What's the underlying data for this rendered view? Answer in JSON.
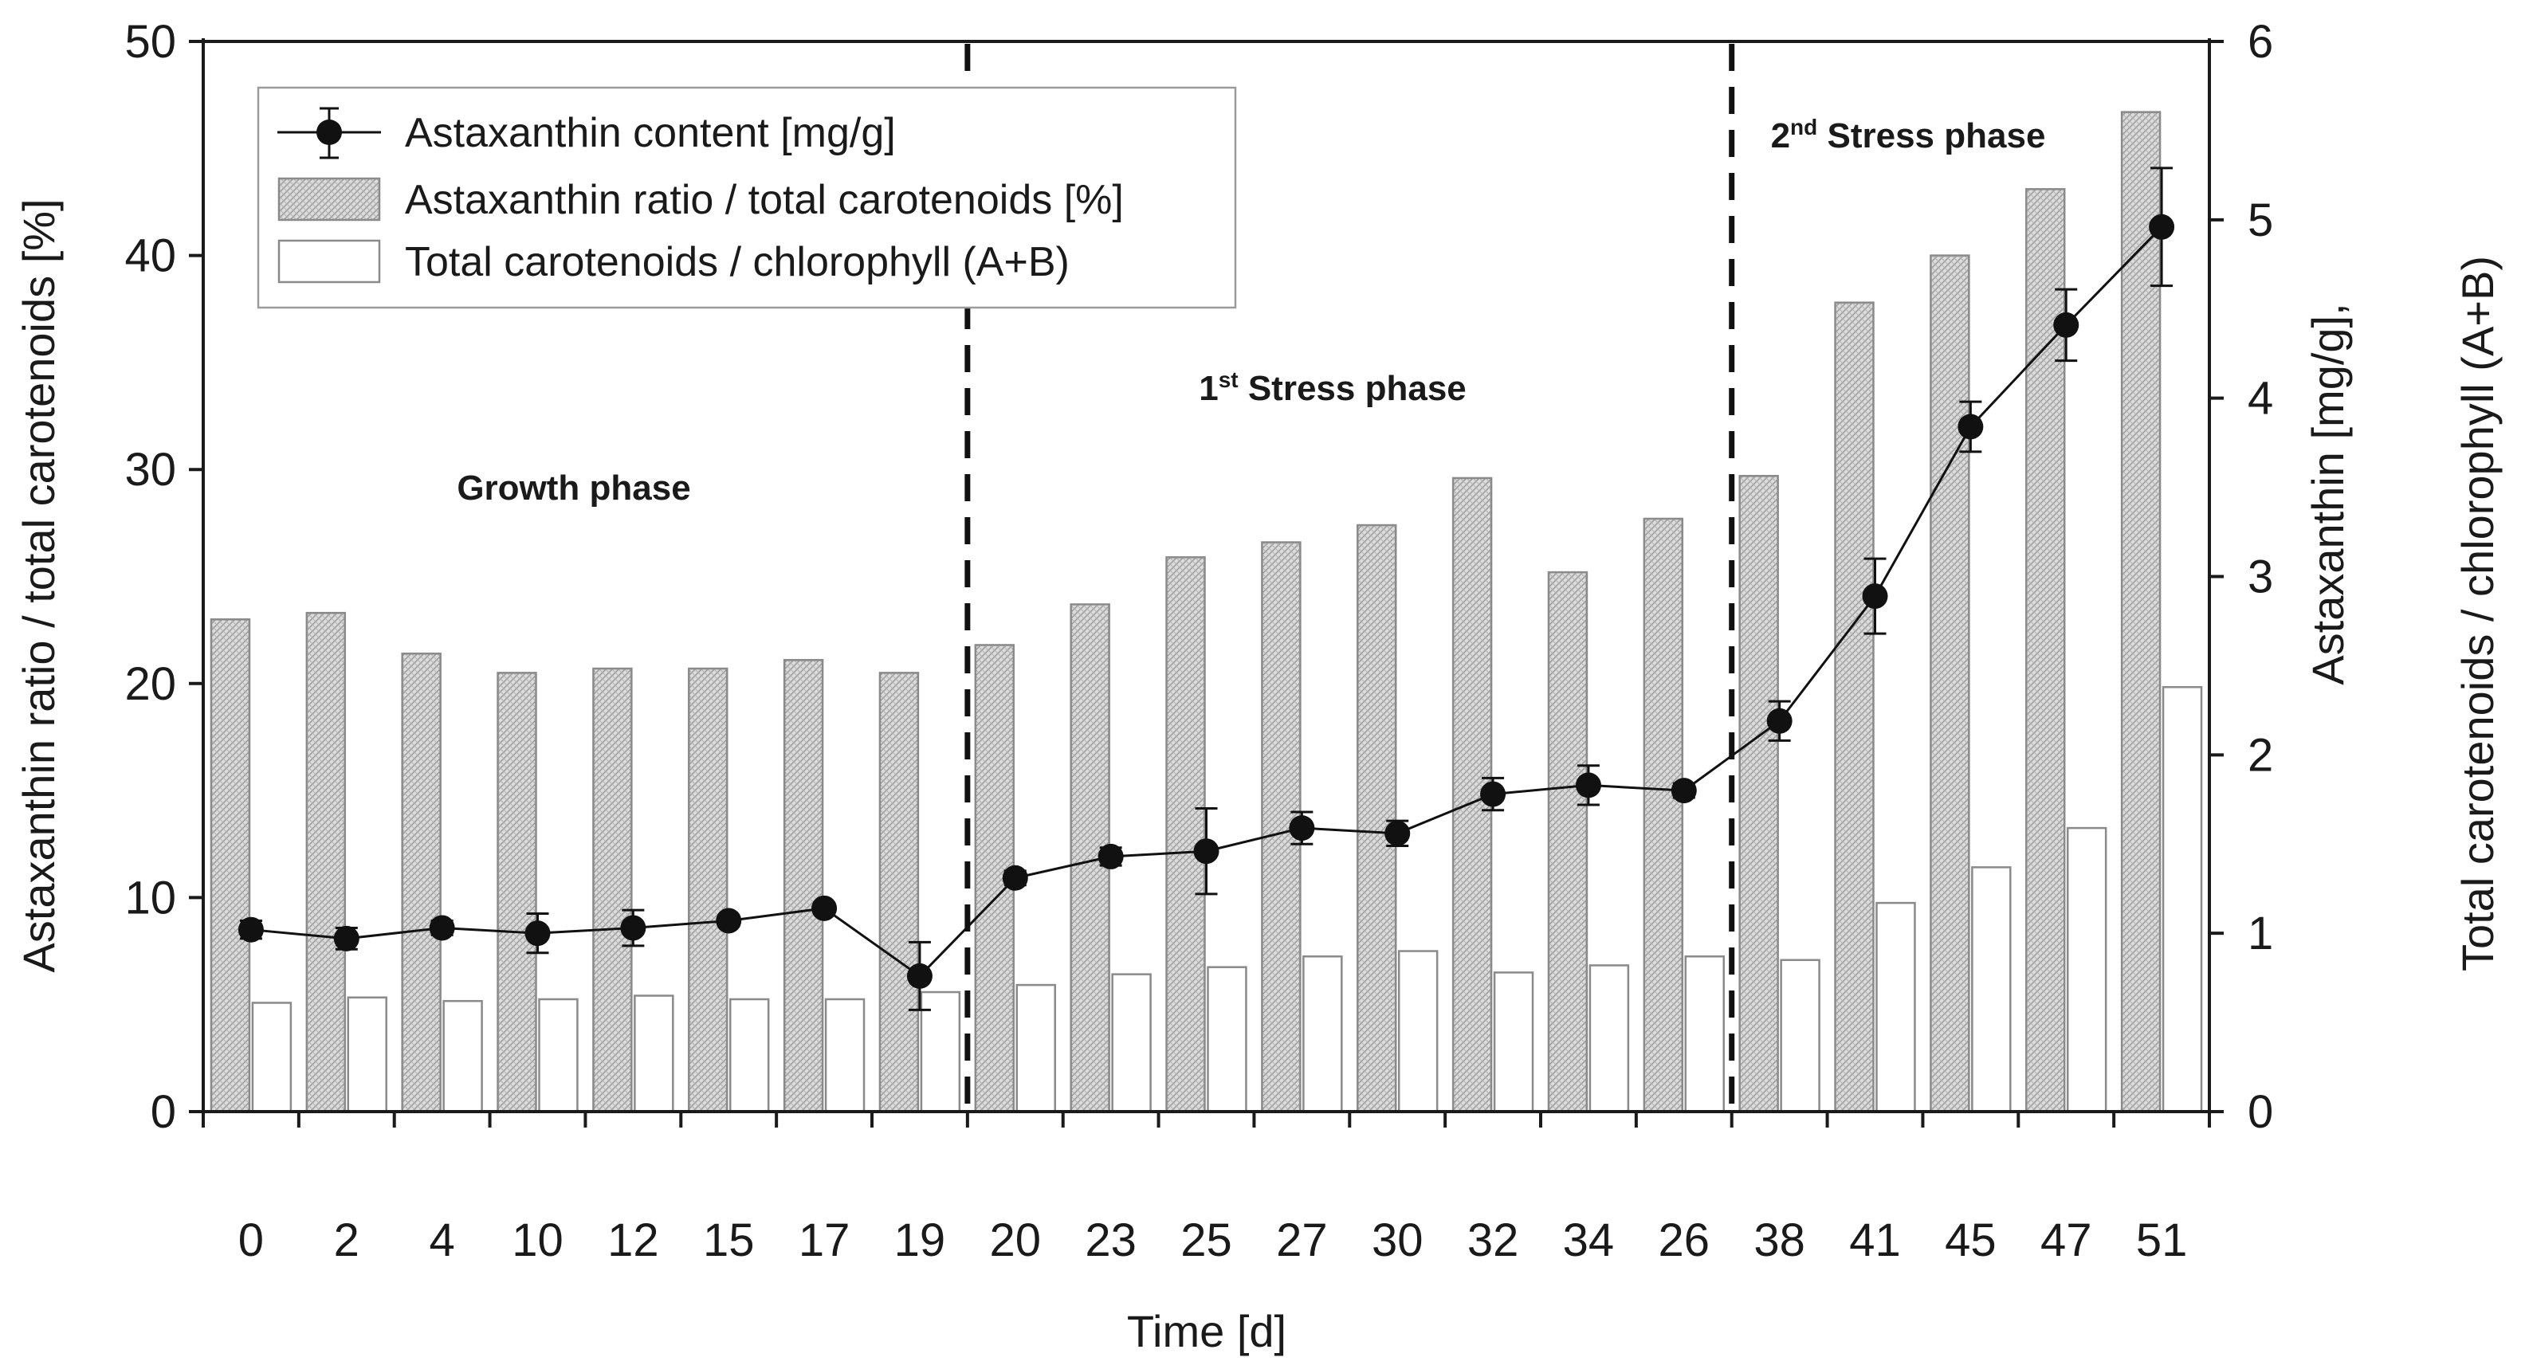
{
  "chart_data": {
    "type": "bar",
    "categories": [
      "0",
      "2",
      "4",
      "10",
      "12",
      "15",
      "17",
      "19",
      "20",
      "23",
      "25",
      "27",
      "30",
      "32",
      "34",
      "26",
      "38",
      "41",
      "45",
      "47",
      "51"
    ],
    "xlabel": "Time [d]",
    "ylabel_left": "Astaxanthin ratio / total carotenoids [%]",
    "ylabel_right_lines": [
      "Total carotenoids / chlorophyll (A+B)",
      "Astaxanthin [mg/g],"
    ],
    "ylim_left": [
      0,
      50
    ],
    "ylim_right": [
      0,
      6
    ],
    "yticks_left": [
      "0",
      "10",
      "20",
      "30",
      "40",
      "50"
    ],
    "yticks_right": [
      "0",
      "1",
      "2",
      "3",
      "4",
      "5",
      "6"
    ],
    "series": [
      {
        "name": "Astaxanthin ratio / total carotenoids [%]",
        "type": "bar",
        "axis": "left",
        "pattern": "hatched",
        "values": [
          23.0,
          23.3,
          21.4,
          20.5,
          20.7,
          20.7,
          21.1,
          20.5,
          21.8,
          23.7,
          25.9,
          26.6,
          27.4,
          29.6,
          25.2,
          27.7,
          29.7,
          37.8,
          40.0,
          43.1,
          46.7
        ]
      },
      {
        "name": "Total carotenoids / chlorophyll (A+B)",
        "type": "bar",
        "axis": "right",
        "pattern": "open",
        "values": [
          0.61,
          0.64,
          0.62,
          0.63,
          0.65,
          0.63,
          0.63,
          0.67,
          0.71,
          0.77,
          0.81,
          0.87,
          0.9,
          0.78,
          0.82,
          0.87,
          0.85,
          1.17,
          1.37,
          1.59,
          2.38
        ]
      },
      {
        "name": "Astaxanthin content [mg/g]",
        "type": "line",
        "axis": "right",
        "marker": "circle",
        "values": [
          1.02,
          0.97,
          1.03,
          1.0,
          1.03,
          1.07,
          1.14,
          0.76,
          1.31,
          1.43,
          1.46,
          1.59,
          1.56,
          1.78,
          1.83,
          1.8,
          2.19,
          2.89,
          3.84,
          4.41,
          4.96
        ],
        "errors": [
          0.05,
          0.06,
          0.04,
          0.11,
          0.1,
          0.03,
          0.03,
          0.19,
          0.04,
          0.05,
          0.24,
          0.09,
          0.07,
          0.09,
          0.11,
          0.04,
          0.11,
          0.21,
          0.14,
          0.2,
          0.33
        ]
      }
    ],
    "phase_dividers_after_index": [
      7,
      15
    ],
    "phases": [
      {
        "label": "Growth phase",
        "sup": "",
        "rest": ""
      },
      {
        "label": "1",
        "sup": "st",
        "rest": " Stress phase"
      },
      {
        "label": "2",
        "sup": "nd",
        "rest": " Stress phase"
      }
    ],
    "legend_position": "top-left"
  },
  "colors": {
    "axis": "#1a1a1a",
    "hatched_bar_fill": "#d6d6d6",
    "hatched_bar_stroke": "#8a8a8a",
    "open_bar_fill": "#ffffff",
    "open_bar_stroke": "#8a8a8a",
    "line": "#111111",
    "legend_border": "#9a9a9a"
  }
}
